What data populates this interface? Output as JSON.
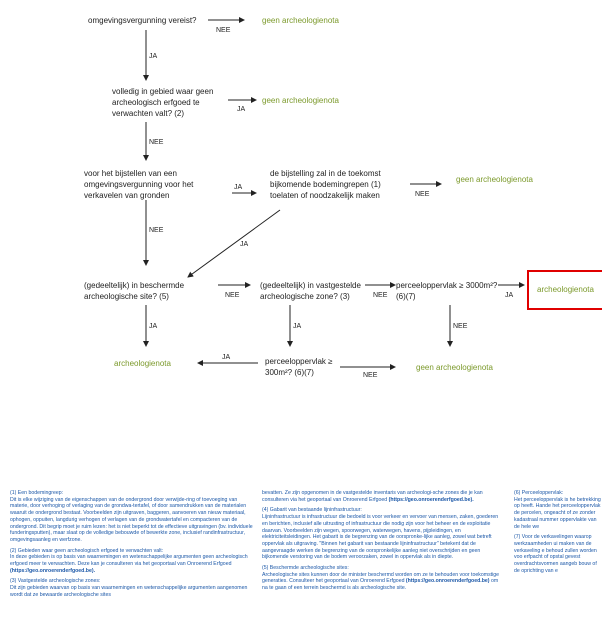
{
  "flow": {
    "q1": "omgevingsvergunning vereist?",
    "q1_no": "geen archeologienota",
    "q2": "volledig in gebied waar geen archeologisch erfgoed te verwachten valt? (2)",
    "q2_no": "geen archeologienota",
    "q3": "voor het bijstellen van een omgevingsvergunning voor het verkavelen van gronden",
    "q3b": "de bijstelling zal in de toekomst bijkomende bodemingrepen (1) toelaten of noodzakelijk maken",
    "q3b_no": "geen archeologienota",
    "q4": "(gedeeltelijk) in beschermde archeologische site? (5)",
    "q4_yes": "archeologienota",
    "q5": "(gedeeltelijk) in vastgestelde archeologische zone? (3)",
    "q6": "perceeloppervlak ≥ 3000m²? (6)(7)",
    "q6_yes": "archeologienota",
    "q6_no": "geen archeologienota",
    "q7": "perceeloppervlak ≥ 300m²? (6)(7)",
    "ja": "JA",
    "nee": "NEE"
  },
  "notes": {
    "n1_title": "(1) Een bodemingreep:",
    "n1_text": "Dit is elke wijziging van de eigenschappen van de ondergrond door verwijde-ring of toevoeging van materie, door verhoging of verlaging van de grondwa-tertafel, of door samendrukken van de materialen waaruit de ondergrond bestaat. Voorbeelden zijn uitgraven, baggeren, aanvoeren van nieuw materiaal, ophogen, oppuiten, langdurig verhogen of verlagen van de grondwatertafel en compacteren van de ondergrond. Dit begrip moet je ruim lezen: het is niet beperkt tot de effectieve uitgravingen (bv. individuele funderingsputten), maar slaat op de volledige bebouwde of bewerkte zone, inclusief randinfrastructuur, omgevingsaanleg en werfzone.",
    "n2_title": "(2) Gebieden waar geen archeologisch erfgoed te verwachten valt:",
    "n2_text": "In deze gebieden is op basis van waarnemingen en wetenschappelijke argumenten geen archeologisch erfgoed meer te verwachten. Deze kan je consulteren via het geoportaal van Onroerend Erfgoed",
    "n2_link": "(https://geo.onroerenderfgoed.be).",
    "n3_title": "(3) Vastgestelde archeologische zones:",
    "n3_text": "Dit zijn gebieden waarvan op basis van waarnemingen en wetenschappelijke argumenten aangenomen wordt dat ze bewaarde archeologische sites",
    "n3_cont": "bevatten. Ze zijn opgenomen in de vastgestelde inventaris van archeologi-sche zones die je kan consulteren via het geoportaal van Onroerend Erfgoed",
    "n3_link": "(https://geo.onroerenderfgoed.be).",
    "n4_title": "(4) Gabarit van bestaande lijninfrastructuur:",
    "n4_text": "Lijninfrastructuur is infrastructuur die bedoeld is voor verkeer en vervoer van mensen, zaken, goederen en berichten, inclusief alle uitrusting of infrastructuur die nodig zijn voor het beheer en de exploitatie daarvan. Voorbeelden zijn wegen, spoorwegen, waterwegen, havens, pijpleidingen, en elektriciteitsleidingen. Het gabarit is de begrenzing van de oorspronke-lijke aanleg, zowel wat betreft oppervlak als uitgraving. \"Binnen het gabarit van bestaande lijninfrastructuur\" betekent dat de aangevraagde werken de begrenzing van de oorspronkelijke aanleg niet overschrijden en geen bijkomende verstoring van de bodem veroorzaken, zowel in oppervlak als in diepte.",
    "n5_title": "(5) Beschermde archeologische sites:",
    "n5_text": "Archeologische sites kunnen door de minister beschermd worden om ze te behouden voor toekomstige generaties. Consulteer het geoportaal van Onroerend Erfgoed",
    "n5_link": "(https://geo.onroerenderfgoed.be)",
    "n5_tail": "om na te gaan of een terrein beschermd is als archeologische site.",
    "n6_title": "(6) Perceeloppervlak:",
    "n6_text": "Het perceeloppervlak is he betrekking op heeft. Hande het perceeloppervlak de percelen, ongeacht of ze zonder kadastraal nummer oppervlakte van de hele we",
    "n7_text": "(7) Voor de verkavelingen waarop werkzaamheden ui maken van de verkaveling e behoud zullen worden voo erfpacht of opstal gevest overdrachtsvormen aangeb bouw of de oprichting van e"
  }
}
